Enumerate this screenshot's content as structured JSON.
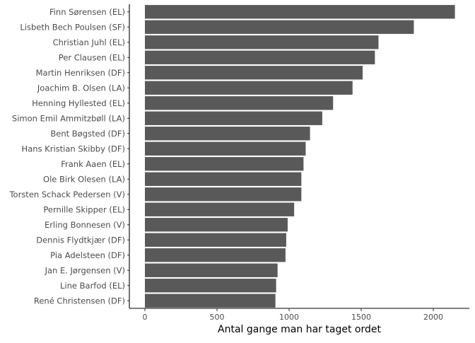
{
  "chart_data": {
    "type": "bar",
    "orientation": "horizontal",
    "title": "",
    "xlabel": "Antal gange man har taget ordet",
    "ylabel": "",
    "xlim": [
      0,
      2250
    ],
    "xticks": [
      0,
      500,
      1000,
      1500,
      2000
    ],
    "xtick_labels": [
      "0",
      "500",
      "1000",
      "1500",
      "2000"
    ],
    "grid": false,
    "bar_color": "#595959",
    "categories": [
      "Finn Sørensen  (EL)",
      "Lisbeth Bech Poulsen  (SF)",
      "Christian Juhl  (EL)",
      "Per Clausen  (EL)",
      "Martin Henriksen  (DF)",
      "Joachim B. Olsen  (LA)",
      "Henning Hyllested  (EL)",
      "Simon Emil Ammitzbøll  (LA)",
      "Bent Bøgsted  (DF)",
      "Hans Kristian Skibby  (DF)",
      "Frank Aaen  (EL)",
      "Ole Birk Olesen  (LA)",
      "Torsten Schack Pedersen  (V)",
      "Pernille Skipper  (EL)",
      "Erling Bonnesen  (V)",
      "Dennis Flydtkjær  (DF)",
      "Pia Adelsteen  (DF)",
      "Jan E. Jørgensen  (V)",
      "Line Barfod  (EL)",
      "René Christensen  (DF)"
    ],
    "values": [
      2150,
      1865,
      1620,
      1595,
      1510,
      1440,
      1305,
      1230,
      1145,
      1115,
      1100,
      1085,
      1085,
      1035,
      990,
      980,
      975,
      920,
      910,
      905
    ]
  }
}
